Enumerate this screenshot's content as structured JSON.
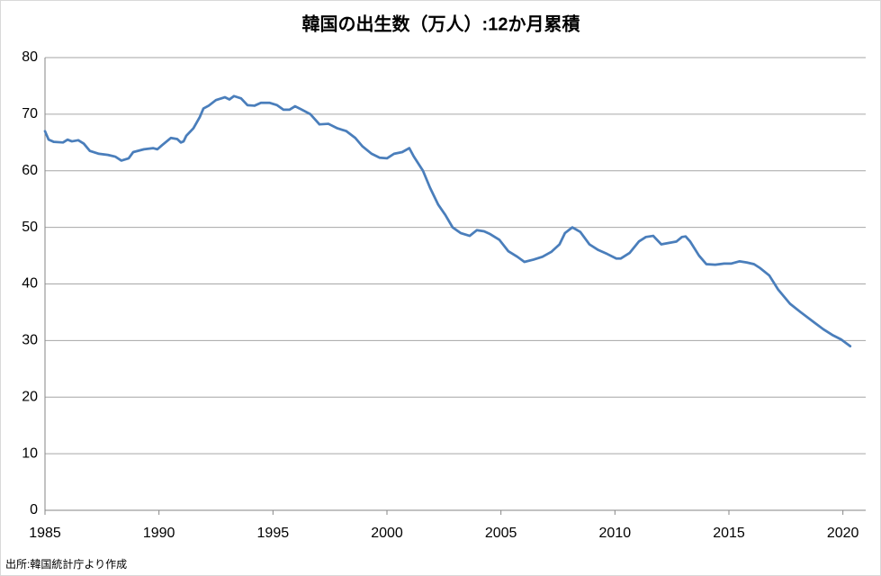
{
  "chart_data": {
    "type": "line",
    "title": "韓国の出生数（万人）:12か月累積",
    "source": "出所:韓国統計庁より作成",
    "x": [
      1985,
      1985.16,
      1985.39,
      1985.79,
      1985.99,
      1986.18,
      1986.46,
      1986.7,
      1986.97,
      1987.37,
      1987.76,
      1988.08,
      1988.35,
      1988.67,
      1988.87,
      1989.34,
      1989.74,
      1989.93,
      1990.13,
      1990.52,
      1990.8,
      1990.96,
      1991.08,
      1991.2,
      1991.51,
      1991.79,
      1991.95,
      1992.18,
      1992.5,
      1992.89,
      1993.09,
      1993.29,
      1993.6,
      1993.88,
      1994.19,
      1994.47,
      1994.86,
      1995.18,
      1995.46,
      1995.73,
      1995.97,
      1996.17,
      1996.64,
      1997.04,
      1997.43,
      1997.83,
      1998.22,
      1998.61,
      1998.93,
      1999.33,
      1999.68,
      2000,
      2000.31,
      2000.67,
      2000.98,
      2001.18,
      2001.58,
      2001.89,
      2002.25,
      2002.56,
      2002.88,
      2003.23,
      2003.63,
      2003.94,
      2004.26,
      2004.53,
      2004.93,
      2005.32,
      2005.72,
      2006.03,
      2006.43,
      2006.82,
      2007.22,
      2007.57,
      2007.81,
      2008.13,
      2008.48,
      2008.88,
      2009.27,
      2009.66,
      2010.06,
      2010.26,
      2010.65,
      2011.05,
      2011.36,
      2011.68,
      2012.03,
      2012.43,
      2012.7,
      2012.94,
      2013.1,
      2013.3,
      2013.69,
      2014.01,
      2014.4,
      2014.79,
      2015.11,
      2015.47,
      2015.78,
      2016.1,
      2016.37,
      2016.77,
      2017.16,
      2017.68,
      2018.15,
      2018.74,
      2019.14,
      2019.53,
      2019.92,
      2020.32
    ],
    "series": [
      {
        "name": "出生数",
        "color": "#4a7ebb",
        "values": [
          67,
          65.5,
          65.1,
          65.0,
          65.5,
          65.2,
          65.4,
          64.8,
          63.5,
          63.0,
          62.8,
          62.5,
          61.8,
          62.2,
          63.3,
          63.8,
          64.0,
          63.8,
          64.5,
          65.8,
          65.6,
          65.0,
          65.2,
          66.2,
          67.5,
          69.5,
          71.0,
          71.5,
          72.5,
          73.0,
          72.6,
          73.2,
          72.8,
          71.6,
          71.5,
          72.0,
          72.0,
          71.6,
          70.8,
          70.8,
          71.4,
          71.0,
          70.0,
          68.2,
          68.3,
          67.5,
          67.0,
          65.8,
          64.3,
          63.0,
          62.3,
          62.2,
          63.0,
          63.3,
          64.0,
          62.5,
          60.0,
          57.0,
          54.0,
          52.2,
          50.0,
          49.0,
          48.5,
          49.5,
          49.3,
          48.8,
          47.8,
          45.8,
          44.8,
          43.9,
          44.3,
          44.8,
          45.7,
          47.0,
          49.0,
          50.0,
          49.2,
          47.0,
          46.0,
          45.3,
          44.5,
          44.5,
          45.5,
          47.5,
          48.3,
          48.5,
          47.0,
          47.3,
          47.5,
          48.3,
          48.4,
          47.5,
          45.0,
          43.5,
          43.4,
          43.6,
          43.6,
          44.0,
          43.8,
          43.5,
          42.8,
          41.5,
          39.0,
          36.5,
          35.0,
          33.2,
          32.0,
          31.0,
          30.2,
          29.0
        ]
      }
    ],
    "xlim": [
      1985,
      2021
    ],
    "xticks": [
      1985,
      1990,
      1995,
      2000,
      2005,
      2010,
      2015,
      2020
    ],
    "ylim": [
      0,
      80
    ],
    "yticks": [
      0,
      10,
      20,
      30,
      40,
      50,
      60,
      70,
      80
    ],
    "grid": true
  }
}
